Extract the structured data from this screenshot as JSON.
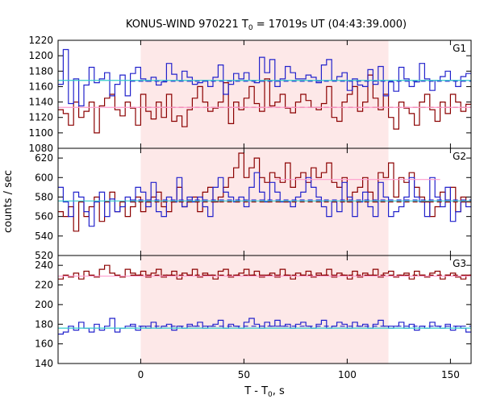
{
  "chart_data": {
    "type": "line",
    "title_main": "KONUS-WIND 970221 T",
    "title_sub": "0",
    "title_rest": " = 17019s UT (04:43:39.000)",
    "xlabel_main": "T - T",
    "xlabel_sub": "0",
    "xlabel_rest": ", s",
    "ylabel": "counts / sec",
    "xlim": [
      -40,
      160
    ],
    "x_ticks": [
      0,
      50,
      100,
      150
    ],
    "highlight": {
      "x_start": 0,
      "x_end": 120,
      "color": "#fde8e8"
    },
    "colors": {
      "red": "#8b0000",
      "blue": "#2222cc",
      "pink": "#ff9ecf",
      "cyan": "#33cccc"
    },
    "panels": [
      {
        "label": "G1",
        "ylim": [
          1080,
          1220
        ],
        "y_ticks": [
          1080,
          1100,
          1120,
          1140,
          1160,
          1180,
          1200,
          1220
        ],
        "blue_series": [
          1163,
          1208,
          1138,
          1170,
          1135,
          1162,
          1185,
          1165,
          1170,
          1178,
          1148,
          1163,
          1175,
          1148,
          1177,
          1185,
          1170,
          1167,
          1172,
          1162,
          1166,
          1190,
          1176,
          1168,
          1180,
          1172,
          1163,
          1165,
          1168,
          1160,
          1172,
          1188,
          1150,
          1163,
          1177,
          1170,
          1178,
          1168,
          1165,
          1198,
          1178,
          1195,
          1160,
          1170,
          1186,
          1178,
          1170,
          1170,
          1175,
          1172,
          1165,
          1188,
          1195,
          1168,
          1173,
          1178,
          1155,
          1170,
          1162,
          1160,
          1182,
          1163,
          1186,
          1148,
          1166,
          1154,
          1185,
          1170,
          1160,
          1166,
          1190,
          1170,
          1155,
          1168,
          1173,
          1180,
          1168,
          1160,
          1173,
          1177
        ],
        "red_series": [
          1130,
          1125,
          1110,
          1140,
          1120,
          1128,
          1140,
          1100,
          1135,
          1145,
          1150,
          1130,
          1122,
          1140,
          1132,
          1110,
          1150,
          1128,
          1118,
          1140,
          1120,
          1150,
          1115,
          1122,
          1108,
          1130,
          1145,
          1160,
          1140,
          1128,
          1132,
          1140,
          1165,
          1112,
          1140,
          1130,
          1145,
          1160,
          1138,
          1128,
          1170,
          1135,
          1140,
          1150,
          1132,
          1126,
          1140,
          1150,
          1142,
          1133,
          1130,
          1138,
          1160,
          1120,
          1115,
          1140,
          1150,
          1160,
          1128,
          1140,
          1175,
          1145,
          1130,
          1150,
          1120,
          1105,
          1140,
          1132,
          1125,
          1110,
          1140,
          1150,
          1130,
          1115,
          1140,
          1125,
          1150,
          1140,
          1128,
          1137
        ],
        "levels": [
          {
            "color": "blue",
            "style": "dashed",
            "value": 1167,
            "x": [
              -5,
              160
            ]
          },
          {
            "color": "red",
            "style": "dashed",
            "value": 1133,
            "x": [
              -5,
              160
            ]
          },
          {
            "color": "cyan",
            "style": "solid",
            "value": 1168,
            "x": [
              -40,
              160
            ]
          },
          {
            "color": "pink",
            "style": "solid",
            "value": 1133,
            "x": [
              -40,
              160
            ]
          }
        ]
      },
      {
        "label": "G2",
        "ylim": [
          520,
          630
        ],
        "y_ticks": [
          520,
          540,
          560,
          580,
          600,
          620
        ],
        "blue_series": [
          590,
          575,
          560,
          585,
          580,
          565,
          550,
          575,
          585,
          560,
          578,
          565,
          570,
          580,
          575,
          590,
          585,
          570,
          595,
          565,
          560,
          580,
          575,
          600,
          570,
          580,
          575,
          580,
          570,
          560,
          590,
          600,
          585,
          580,
          575,
          580,
          570,
          590,
          605,
          585,
          575,
          595,
          585,
          575,
          575,
          570,
          580,
          585,
          600,
          590,
          580,
          570,
          560,
          575,
          565,
          595,
          580,
          560,
          575,
          585,
          570,
          560,
          595,
          580,
          560,
          565,
          570,
          580,
          600,
          580,
          575,
          560,
          600,
          580,
          570,
          590,
          555,
          565,
          575,
          570
        ],
        "red_series": [
          565,
          560,
          570,
          545,
          575,
          560,
          570,
          580,
          555,
          575,
          585,
          565,
          575,
          560,
          570,
          580,
          565,
          575,
          580,
          585,
          570,
          565,
          575,
          590,
          570,
          575,
          580,
          565,
          585,
          590,
          575,
          580,
          590,
          600,
          610,
          625,
          600,
          610,
          620,
          600,
          595,
          605,
          600,
          595,
          615,
          590,
          600,
          605,
          595,
          610,
          600,
          605,
          615,
          595,
          590,
          600,
          575,
          585,
          590,
          600,
          585,
          575,
          605,
          600,
          615,
          580,
          600,
          595,
          605,
          590,
          580,
          575,
          560,
          570,
          585,
          575,
          590,
          565,
          580,
          575
        ],
        "levels": [
          {
            "color": "blue",
            "style": "dashed",
            "value": 577,
            "x": [
              -5,
              160
            ]
          },
          {
            "color": "red",
            "style": "dashed",
            "value": 575,
            "x": [
              -5,
              160
            ]
          },
          {
            "color": "cyan",
            "style": "solid",
            "value": 576,
            "x": [
              -40,
              160
            ]
          },
          {
            "color": "pink",
            "style": "solid",
            "value": 598,
            "x": [
              65,
              145
            ]
          }
        ]
      },
      {
        "label": "G3",
        "ylim": [
          140,
          250
        ],
        "y_ticks": [
          140,
          160,
          180,
          200,
          220,
          240
        ],
        "blue_series": [
          170,
          172,
          178,
          174,
          182,
          176,
          172,
          180,
          174,
          178,
          186,
          172,
          176,
          178,
          180,
          174,
          178,
          176,
          182,
          176,
          178,
          180,
          174,
          178,
          176,
          180,
          178,
          182,
          176,
          178,
          180,
          184,
          176,
          180,
          178,
          176,
          182,
          186,
          180,
          176,
          182,
          178,
          184,
          178,
          180,
          176,
          180,
          182,
          178,
          176,
          180,
          184,
          176,
          178,
          182,
          180,
          176,
          182,
          178,
          180,
          176,
          180,
          184,
          178,
          176,
          178,
          182,
          176,
          180,
          174,
          178,
          176,
          182,
          178,
          176,
          180,
          174,
          178,
          176,
          172
        ],
        "red_series": [
          226,
          230,
          228,
          232,
          226,
          234,
          230,
          228,
          236,
          240,
          232,
          230,
          228,
          236,
          232,
          230,
          234,
          228,
          232,
          236,
          228,
          230,
          234,
          226,
          232,
          230,
          236,
          228,
          232,
          230,
          226,
          234,
          236,
          228,
          230,
          232,
          236,
          230,
          234,
          228,
          230,
          232,
          228,
          236,
          230,
          226,
          232,
          230,
          234,
          228,
          232,
          230,
          236,
          228,
          232,
          230,
          226,
          234,
          228,
          232,
          230,
          236,
          228,
          232,
          234,
          228,
          230,
          232,
          226,
          234,
          230,
          228,
          232,
          234,
          226,
          230,
          232,
          228,
          226,
          230
        ],
        "levels": [
          {
            "color": "blue",
            "style": "dashed",
            "value": 178,
            "x": [
              -5,
              160
            ]
          },
          {
            "color": "red",
            "style": "dashed",
            "value": 230,
            "x": [
              -5,
              160
            ]
          },
          {
            "color": "cyan",
            "style": "solid",
            "value": 176,
            "x": [
              -40,
              160
            ]
          },
          {
            "color": "pink",
            "style": "solid",
            "value": 229,
            "x": [
              -40,
              160
            ]
          }
        ]
      }
    ]
  }
}
